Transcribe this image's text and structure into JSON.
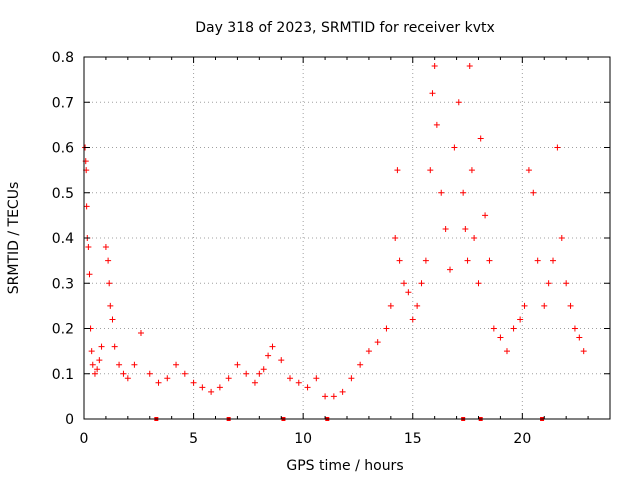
{
  "chart_data": {
    "type": "scatter",
    "title": "Day 318 of 2023, SRMTID for receiver kvtx",
    "xlabel": "GPS time / hours",
    "ylabel": "SRMTID / TECUs",
    "xlim": [
      0,
      24
    ],
    "ylim": [
      0,
      0.8
    ],
    "xticks": [
      0,
      5,
      10,
      15,
      20
    ],
    "yticks": [
      0,
      0.1,
      0.2,
      0.3,
      0.4,
      0.5,
      0.6,
      0.7,
      0.8
    ],
    "xtick_labels": [
      "0",
      "5",
      "10",
      "15",
      "20"
    ],
    "ytick_labels": [
      "0",
      "0.1",
      "0.2",
      "0.3",
      "0.4",
      "0.5",
      "0.6",
      "0.7",
      "0.8"
    ],
    "grid": true,
    "marker": "+",
    "color": "#ff0000",
    "series": [
      {
        "name": "SRMTID",
        "x": [
          0.05,
          0.08,
          0.1,
          0.12,
          0.15,
          0.2,
          0.25,
          0.3,
          0.35,
          0.4,
          0.5,
          0.6,
          0.7,
          0.8,
          1.0,
          1.1,
          1.15,
          1.2,
          1.3,
          1.4,
          1.6,
          1.8,
          2.0,
          2.3,
          2.6,
          3.0,
          3.4,
          3.8,
          4.2,
          4.6,
          5.0,
          5.4,
          5.8,
          6.2,
          6.6,
          7.0,
          7.4,
          7.8,
          8.0,
          8.2,
          8.4,
          8.6,
          9.0,
          9.4,
          9.8,
          10.2,
          10.6,
          11.0,
          11.4,
          11.8,
          12.2,
          12.6,
          13.0,
          13.4,
          13.8,
          14.0,
          14.2,
          14.3,
          14.4,
          14.6,
          14.8,
          15.0,
          15.2,
          15.4,
          15.6,
          15.8,
          15.9,
          16.0,
          16.1,
          16.3,
          16.5,
          16.7,
          16.9,
          17.1,
          17.3,
          17.4,
          17.5,
          17.6,
          17.7,
          17.8,
          18.0,
          18.1,
          18.3,
          18.5,
          18.7,
          19.0,
          19.3,
          19.6,
          19.9,
          20.1,
          20.3,
          20.5,
          20.7,
          21.0,
          21.2,
          21.4,
          21.6,
          21.8,
          22.0,
          22.2,
          22.4,
          22.6,
          22.8
        ],
        "y": [
          0.6,
          0.57,
          0.55,
          0.47,
          0.4,
          0.38,
          0.32,
          0.2,
          0.15,
          0.12,
          0.1,
          0.11,
          0.13,
          0.16,
          0.38,
          0.35,
          0.3,
          0.25,
          0.22,
          0.16,
          0.12,
          0.1,
          0.09,
          0.12,
          0.19,
          0.1,
          0.08,
          0.09,
          0.12,
          0.1,
          0.08,
          0.07,
          0.06,
          0.07,
          0.09,
          0.12,
          0.1,
          0.08,
          0.1,
          0.11,
          0.14,
          0.16,
          0.13,
          0.09,
          0.08,
          0.07,
          0.09,
          0.05,
          0.05,
          0.06,
          0.09,
          0.12,
          0.15,
          0.17,
          0.2,
          0.25,
          0.4,
          0.55,
          0.35,
          0.3,
          0.28,
          0.22,
          0.25,
          0.3,
          0.35,
          0.55,
          0.72,
          0.78,
          0.65,
          0.5,
          0.42,
          0.33,
          0.6,
          0.7,
          0.5,
          0.42,
          0.35,
          0.78,
          0.55,
          0.4,
          0.3,
          0.62,
          0.45,
          0.35,
          0.2,
          0.18,
          0.15,
          0.2,
          0.22,
          0.25,
          0.55,
          0.5,
          0.35,
          0.25,
          0.3,
          0.35,
          0.6,
          0.4,
          0.3,
          0.25,
          0.2,
          0.18,
          0.15
        ]
      }
    ],
    "axis_markers_hours": [
      3.3,
      6.6,
      9.1,
      11.1,
      17.3,
      18.1,
      20.9
    ]
  }
}
